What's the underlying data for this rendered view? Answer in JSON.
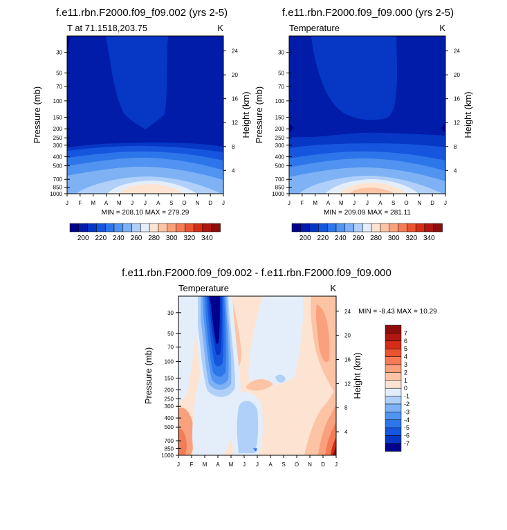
{
  "chart_data": [
    {
      "type": "contour",
      "title": "f.e11.rbn.F2000.f09_f09.002 (yrs 2-5)",
      "subtitle_left": "T at 71.1518,203.75",
      "subtitle_right": "K",
      "xlabel": "",
      "ylabel": "Pressure (mb)",
      "ylabel_right": "Height (km)",
      "x_ticks": [
        "J",
        "F",
        "M",
        "A",
        "M",
        "J",
        "J",
        "A",
        "S",
        "O",
        "N",
        "D",
        "J"
      ],
      "y_ticks": [
        "30",
        "50",
        "70",
        "100",
        "150",
        "200",
        "250",
        "300",
        "400",
        "500",
        "700",
        "850",
        "1000"
      ],
      "y_right_ticks": [
        "24",
        "20",
        "16",
        "12",
        "8",
        "4"
      ],
      "min_max": "MIN = 208.10 MAX = 279.29",
      "colorbar_labels": [
        "200",
        "220",
        "240",
        "260",
        "280",
        "300",
        "320",
        "340"
      ],
      "colorbar_colors": [
        "#00028c",
        "#001ca8",
        "#0637c5",
        "#1656de",
        "#2d76ea",
        "#5093f0",
        "#7eb2f5",
        "#b0d0f9",
        "#e4eefb",
        "#fde3d1",
        "#fcc3a5",
        "#f9a07c",
        "#f57b57",
        "#e95330",
        "#d42d17",
        "#b01710",
        "#8c0d0b"
      ],
      "band_temps": [
        210,
        220,
        230,
        240,
        250,
        260,
        270
      ]
    },
    {
      "type": "contour",
      "title": "f.e11.rbn.F2000.f09_f09.000 (yrs 2-5)",
      "subtitle_left": "Temperature",
      "subtitle_right": "K",
      "xlabel": "",
      "ylabel": "Pressure (mb)",
      "ylabel_right": "Height (km)",
      "x_ticks": [
        "J",
        "F",
        "M",
        "A",
        "M",
        "J",
        "J",
        "A",
        "S",
        "O",
        "N",
        "D",
        "J"
      ],
      "y_ticks": [
        "30",
        "50",
        "70",
        "100",
        "150",
        "200",
        "250",
        "300",
        "400",
        "500",
        "700",
        "850",
        "1000"
      ],
      "y_right_ticks": [
        "24",
        "20",
        "16",
        "12",
        "8",
        "4"
      ],
      "min_max": "MIN = 209.09 MAX = 281.11",
      "colorbar_labels": [
        "200",
        "220",
        "240",
        "260",
        "280",
        "300",
        "320",
        "340"
      ],
      "colorbar_colors": [
        "#00028c",
        "#001ca8",
        "#0637c5",
        "#1656de",
        "#2d76ea",
        "#5093f0",
        "#7eb2f5",
        "#b0d0f9",
        "#e4eefb",
        "#fde3d1",
        "#fcc3a5",
        "#f9a07c",
        "#f57b57",
        "#e95330",
        "#d42d17",
        "#b01710",
        "#8c0d0b"
      ],
      "band_temps": [
        210,
        220,
        230,
        240,
        250,
        260,
        270,
        280
      ]
    },
    {
      "type": "contour",
      "title": "f.e11.rbn.F2000.f09_f09.002 - f.e11.rbn.F2000.f09_f09.000",
      "subtitle_left": "Temperature",
      "subtitle_right": "K",
      "xlabel": "",
      "ylabel": "Pressure (mb)",
      "ylabel_right": "Height (km)",
      "x_ticks": [
        "J",
        "F",
        "M",
        "A",
        "M",
        "J",
        "J",
        "A",
        "S",
        "O",
        "N",
        "D",
        "J"
      ],
      "y_ticks": [
        "30",
        "50",
        "70",
        "100",
        "150",
        "200",
        "250",
        "300",
        "400",
        "500",
        "700",
        "850",
        "1000"
      ],
      "y_right_ticks": [
        "24",
        "20",
        "16",
        "12",
        "8",
        "4"
      ],
      "min_max": "MIN = -8.43 MAX = 10.29",
      "colorbar_labels": [
        "7",
        "6",
        "5",
        "4",
        "3",
        "2",
        "1",
        "0",
        "-1",
        "-2",
        "-3",
        "-4",
        "-5",
        "-6",
        "-7"
      ],
      "colorbar_colors": [
        "#8c0d0b",
        "#b01710",
        "#d42d17",
        "#e95330",
        "#f57b57",
        "#f9a07c",
        "#fcc3a5",
        "#fde3d1",
        "#e4eefb",
        "#b0d0f9",
        "#7eb2f5",
        "#5093f0",
        "#2d76ea",
        "#1656de",
        "#0637c5",
        "#00028c"
      ]
    }
  ]
}
